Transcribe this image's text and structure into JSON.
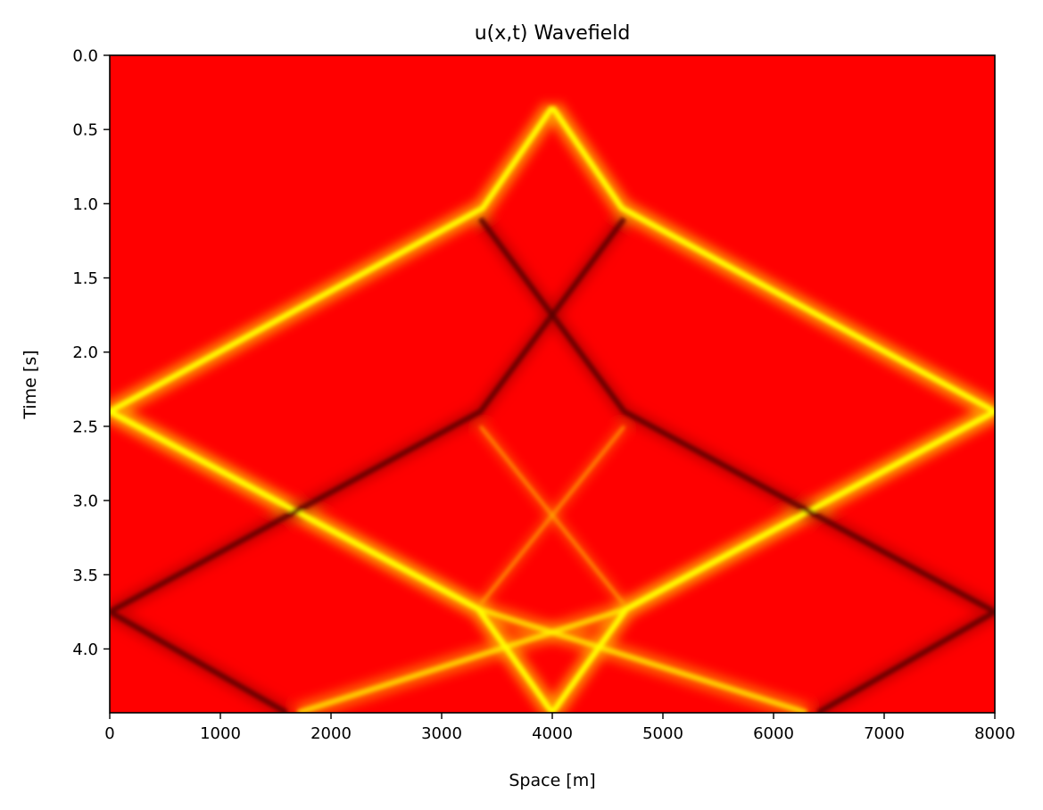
{
  "chart_data": {
    "type": "heatmap",
    "title": "u(x,t) Wavefield",
    "xlabel": "Space [m]",
    "ylabel": "Time [s]",
    "xlim": [
      0,
      8000
    ],
    "ylim": [
      0,
      4.43
    ],
    "y_inverted": true,
    "x_ticks": [
      0,
      1000,
      2000,
      3000,
      4000,
      5000,
      6000,
      7000,
      8000
    ],
    "x_tick_labels": [
      "0",
      "1000",
      "2000",
      "3000",
      "4000",
      "5000",
      "6000",
      "7000",
      "8000"
    ],
    "y_ticks": [
      0.0,
      0.5,
      1.0,
      1.5,
      2.0,
      2.5,
      3.0,
      3.5,
      4.0
    ],
    "y_tick_labels": [
      "0.0",
      "0.5",
      "1.0",
      "1.5",
      "2.0",
      "2.5",
      "3.0",
      "3.5",
      "4.0"
    ],
    "colormap": "hot",
    "grid": false,
    "colors": {
      "background": "#ff0000",
      "positive_peak": "#ffff00",
      "positive_mid": "#ffaa00",
      "negative": "#5a0000",
      "negative_weak": "#b00000"
    },
    "wavefront_events": [
      {
        "polarity": "positive",
        "strength": 1.0,
        "points": [
          [
            4000,
            0.35
          ],
          [
            3370,
            1.03
          ],
          [
            0,
            2.4
          ],
          [
            3330,
            3.73
          ],
          [
            4000,
            4.43
          ]
        ]
      },
      {
        "polarity": "positive",
        "strength": 1.0,
        "points": [
          [
            4000,
            0.35
          ],
          [
            4630,
            1.03
          ],
          [
            8000,
            2.4
          ],
          [
            4670,
            3.73
          ],
          [
            4000,
            4.43
          ]
        ]
      },
      {
        "polarity": "positive",
        "strength": 0.7,
        "points": [
          [
            8000,
            2.4
          ],
          [
            4670,
            3.73
          ],
          [
            1700,
            4.43
          ]
        ]
      },
      {
        "polarity": "positive",
        "strength": 0.7,
        "points": [
          [
            0,
            2.4
          ],
          [
            3330,
            3.73
          ],
          [
            6300,
            4.43
          ]
        ]
      },
      {
        "polarity": "negative",
        "strength": 0.9,
        "points": [
          [
            3350,
            1.1
          ],
          [
            4000,
            1.75
          ],
          [
            4650,
            2.4
          ],
          [
            8000,
            3.75
          ],
          [
            6400,
            4.43
          ]
        ]
      },
      {
        "polarity": "negative",
        "strength": 0.9,
        "points": [
          [
            4650,
            1.1
          ],
          [
            4000,
            1.75
          ],
          [
            3350,
            2.4
          ],
          [
            0,
            3.75
          ],
          [
            1600,
            4.43
          ]
        ]
      },
      {
        "polarity": "positive_weak",
        "strength": 0.5,
        "points": [
          [
            3350,
            2.5
          ],
          [
            4000,
            3.1
          ],
          [
            4650,
            3.7
          ]
        ]
      },
      {
        "polarity": "positive_weak",
        "strength": 0.5,
        "points": [
          [
            4650,
            2.5
          ],
          [
            4000,
            3.1
          ],
          [
            3350,
            3.7
          ]
        ]
      }
    ]
  }
}
